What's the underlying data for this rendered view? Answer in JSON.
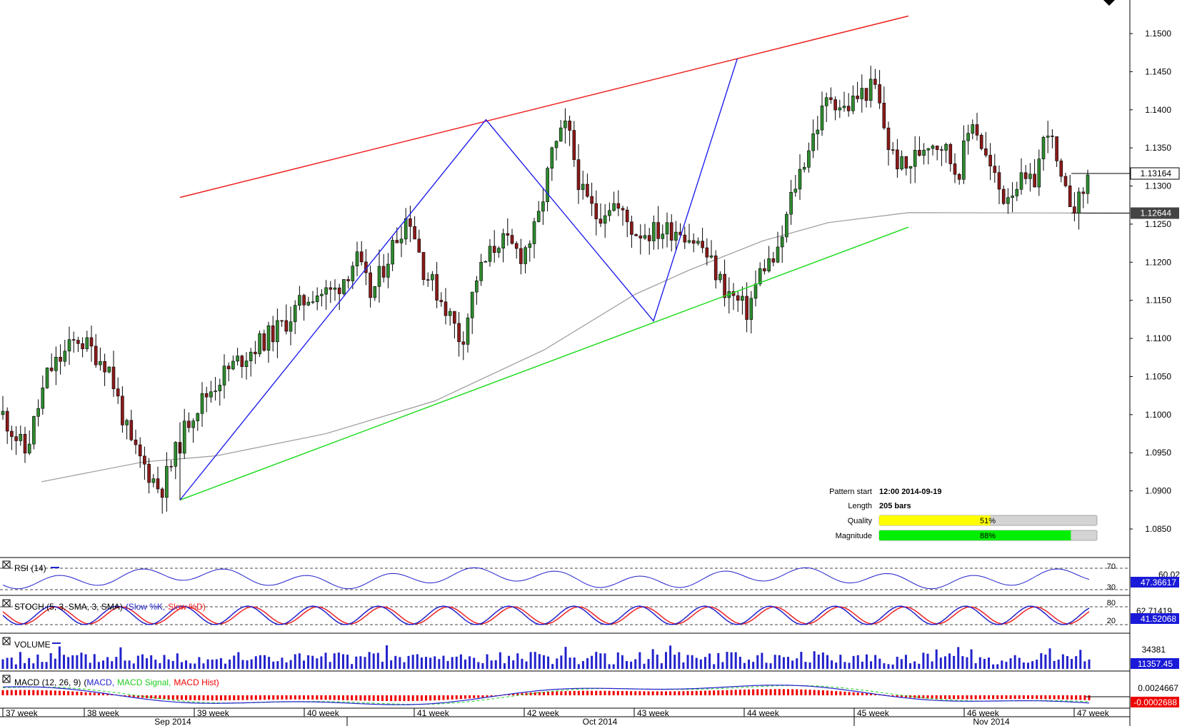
{
  "chart_data": {
    "type": "candlestick",
    "instrument_hint": "",
    "price_axis": {
      "min": 1.081,
      "max": 1.155,
      "ticks": [
        "1.1500",
        "1.1450",
        "1.1400",
        "1.1350",
        "1.1300",
        "1.1250",
        "1.1200",
        "1.1150",
        "1.1100",
        "1.1050",
        "1.1000",
        "1.0950",
        "1.0900",
        "1.0850"
      ],
      "current_price": "1.13164",
      "ma_value": "1.12644",
      "current_price_value": 1.13164,
      "ma_price_value": 1.12644
    },
    "time_axis": {
      "weeks": [
        "37 week",
        "38 week",
        "39 week",
        "40 week",
        "41 week",
        "42 week",
        "43 week",
        "44 week",
        "45 week",
        "46 week",
        "47 week"
      ],
      "months": [
        "Sep 2014",
        "Oct 2014",
        "Nov 2014"
      ]
    },
    "pattern": {
      "upper_line_color": "#ee2222",
      "lower_line_color": "#22dd22",
      "zigzag_color": "#2222ee",
      "pivots": [
        {
          "bar": 0,
          "price": 1.0888
        },
        {
          "bar": 84,
          "price": 1.1387
        },
        {
          "bar": 130,
          "price": 1.1123
        },
        {
          "bar": 153,
          "price": 1.1467
        }
      ],
      "upper_line": {
        "from": {
          "bar": 0,
          "price": 1.1285
        },
        "to": {
          "bar": 200,
          "price": 1.1523
        }
      },
      "lower_line": {
        "from": {
          "bar": 0,
          "price": 1.0888
        },
        "to": {
          "bar": 200,
          "price": 1.1246
        }
      }
    },
    "moving_average": {
      "color": "#9a9a9a",
      "points": [
        {
          "bar": -38,
          "price": 1.0912
        },
        {
          "bar": -10,
          "price": 1.0938
        },
        {
          "bar": 10,
          "price": 1.0946
        },
        {
          "bar": 40,
          "price": 1.0975
        },
        {
          "bar": 70,
          "price": 1.1018
        },
        {
          "bar": 100,
          "price": 1.1085
        },
        {
          "bar": 125,
          "price": 1.1158
        },
        {
          "bar": 140,
          "price": 1.119
        },
        {
          "bar": 160,
          "price": 1.1228
        },
        {
          "bar": 178,
          "price": 1.1252
        },
        {
          "bar": 200,
          "price": 1.1265
        }
      ]
    },
    "info_box": {
      "pattern_start_label": "Pattern start",
      "pattern_start_value": "12:00 2014-09-19",
      "length_label": "Length",
      "length_value": "205 bars",
      "quality_label": "Quality",
      "quality_value": "51%",
      "quality_fraction": 0.51,
      "quality_color": "#ffff00",
      "magnitude_label": "Magnitude",
      "magnitude_value": "88%",
      "magnitude_fraction": 0.88,
      "magnitude_color": "#00ee00"
    },
    "indicators": {
      "rsi": {
        "label": "RSI (14)",
        "level_high": "70",
        "level_low": "30",
        "value": "47.36617",
        "partial_value": "60.02",
        "color": "#2222cc"
      },
      "stoch": {
        "label": "STOCH (5, 3, SMA, 3, SMA)",
        "legend_k": "(Slow %K,",
        "legend_d": "Slow %D)",
        "level_high": "80",
        "level_low": "20",
        "value": "41.52068",
        "partial_value": "62.71419",
        "k_color": "#2222cc",
        "d_color": "#ee2222"
      },
      "volume": {
        "label": "VOLUME",
        "scale_value": "34381",
        "value": "11357.45",
        "color": "#2222cc"
      },
      "macd": {
        "label": "MACD (12, 26, 9)",
        "legend_open": "(",
        "legend_macd": "MACD,",
        "legend_signal": "MACD Signal,",
        "legend_hist": "MACD Hist)",
        "scale_value": "0.0024667",
        "value": "-0.0002688",
        "macd_color": "#2222cc",
        "signal_color": "#22cc22",
        "hist_color": "#ee0000"
      }
    }
  }
}
